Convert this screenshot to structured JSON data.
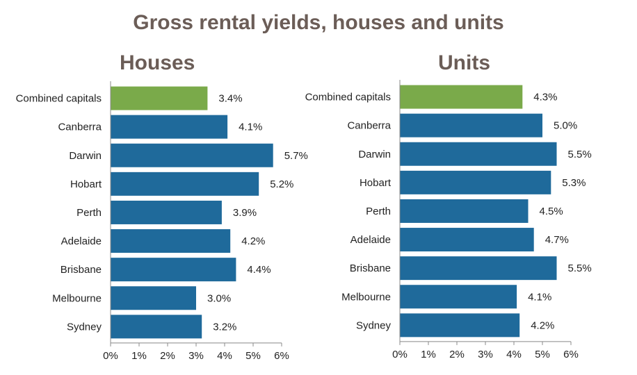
{
  "title": "Gross rental yields, houses and units",
  "colors": {
    "highlight": "#7aaa4a",
    "bar": "#1f6a9b",
    "title": "#6b5d57",
    "axis": "#888888"
  },
  "chart_data": [
    {
      "type": "bar",
      "orientation": "horizontal",
      "title": "Houses",
      "categories": [
        "Combined capitals",
        "Canberra",
        "Darwin",
        "Hobart",
        "Perth",
        "Adelaide",
        "Brisbane",
        "Melbourne",
        "Sydney"
      ],
      "values": [
        3.4,
        4.1,
        5.7,
        5.2,
        3.9,
        4.2,
        4.4,
        3.0,
        3.2
      ],
      "value_labels": [
        "3.4%",
        "4.1%",
        "5.7%",
        "5.2%",
        "3.9%",
        "4.2%",
        "4.4%",
        "3.0%",
        "3.2%"
      ],
      "highlight_index": 0,
      "xlim": [
        0,
        6
      ],
      "ticks": [
        0,
        1,
        2,
        3,
        4,
        5,
        6
      ],
      "tick_labels": [
        "0%",
        "1%",
        "2%",
        "3%",
        "4%",
        "5%",
        "6%"
      ],
      "grid": false
    },
    {
      "type": "bar",
      "orientation": "horizontal",
      "title": "Units",
      "categories": [
        "Combined capitals",
        "Canberra",
        "Darwin",
        "Hobart",
        "Perth",
        "Adelaide",
        "Brisbane",
        "Melbourne",
        "Sydney"
      ],
      "values": [
        4.3,
        5.0,
        5.5,
        5.3,
        4.5,
        4.7,
        5.5,
        4.1,
        4.2
      ],
      "value_labels": [
        "4.3%",
        "5.0%",
        "5.5%",
        "5.3%",
        "4.5%",
        "4.7%",
        "5.5%",
        "4.1%",
        "4.2%"
      ],
      "highlight_index": 0,
      "xlim": [
        0,
        6
      ],
      "ticks": [
        0,
        1,
        2,
        3,
        4,
        5,
        6
      ],
      "tick_labels": [
        "0%",
        "1%",
        "2%",
        "3%",
        "4%",
        "5%",
        "6%"
      ],
      "grid": false
    }
  ]
}
